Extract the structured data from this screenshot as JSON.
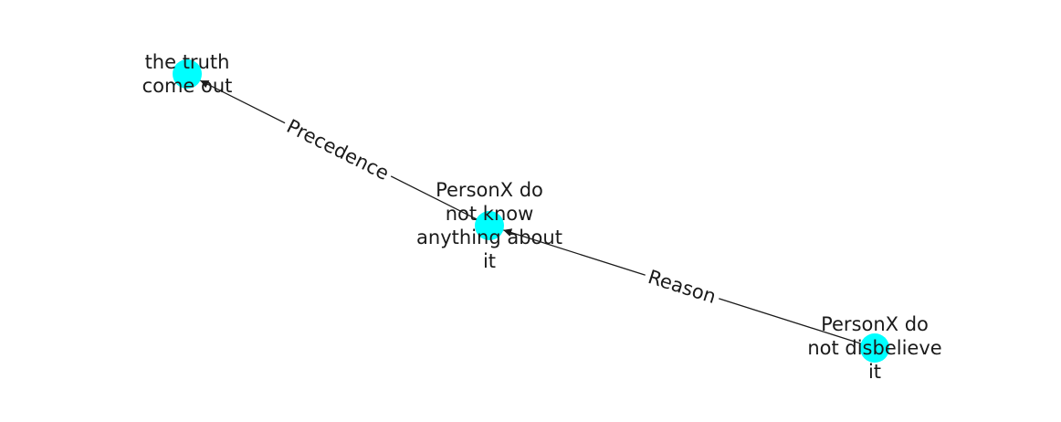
{
  "graph": {
    "nodes": [
      {
        "id": "n1",
        "lines": [
          "the truth",
          "come out"
        ],
        "color": "#00ffff"
      },
      {
        "id": "n2",
        "lines": [
          "PersonX do",
          "not know",
          "anything about",
          "it"
        ],
        "color": "#00ffff"
      },
      {
        "id": "n3",
        "lines": [
          "PersonX do",
          "not disbelieve",
          "it"
        ],
        "color": "#00ffff"
      }
    ],
    "edges": [
      {
        "from": "n2",
        "to": "n1",
        "label": "Precedence"
      },
      {
        "from": "n3",
        "to": "n2",
        "label": "Reason"
      }
    ]
  }
}
